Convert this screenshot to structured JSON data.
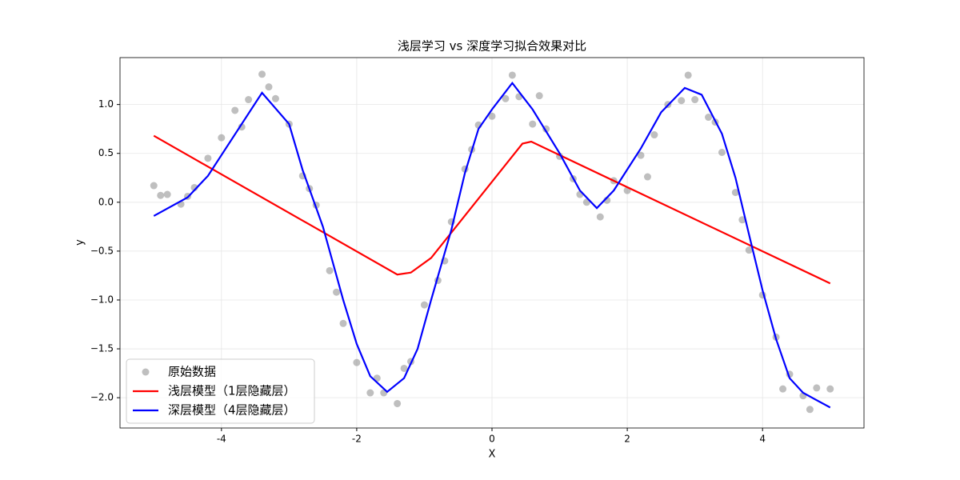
{
  "chart_data": {
    "type": "scatter_line",
    "title": "浅层学习 vs 深度学习拟合效果对比",
    "xlabel": "X",
    "ylabel": "y",
    "xlim": [
      -5.5,
      5.5
    ],
    "ylim": [
      -2.31,
      1.48
    ],
    "xticks": [
      -4,
      -2,
      0,
      2,
      4
    ],
    "yticks": [
      {
        "value": 1,
        "label": "1.0"
      },
      {
        "value": 0.5,
        "label": "0.5"
      },
      {
        "value": 0,
        "label": "0.0"
      },
      {
        "value": -0.5,
        "label": "−0.5"
      },
      {
        "value": -1,
        "label": "−1.0"
      },
      {
        "value": -1.5,
        "label": "−1.5"
      },
      {
        "value": -2,
        "label": "−2.0"
      }
    ],
    "grid": true,
    "legend": "lower left",
    "scatter": {
      "name": "原始数据",
      "color": "#808080",
      "x": [
        -5.0,
        -4.8,
        -4.6,
        -4.4,
        -4.2,
        -4.0,
        -3.8,
        -3.6,
        -3.4,
        -3.2,
        -3.0,
        -2.8,
        -2.6,
        -2.4,
        -2.2,
        -2.0,
        -1.8,
        -1.6,
        -1.4,
        -1.2,
        -1.0,
        -0.8,
        -0.6,
        -0.4,
        -0.2,
        0.0,
        0.2,
        0.4,
        0.6,
        0.8,
        1.0,
        1.2,
        1.4,
        1.6,
        1.8,
        2.0,
        2.2,
        2.4,
        2.6,
        2.8,
        3.0,
        3.2,
        3.4,
        3.6,
        3.8,
        4.0,
        4.2,
        4.4,
        4.6,
        4.8,
        5.0,
        -4.9,
        -4.5,
        -3.7,
        -3.3,
        -2.7,
        -2.3,
        -1.7,
        -1.3,
        -0.7,
        -0.3,
        0.3,
        0.7,
        1.3,
        1.7,
        2.3,
        2.9,
        3.3,
        3.7,
        4.3,
        4.7
      ],
      "values": [
        0.17,
        0.08,
        -0.02,
        0.15,
        0.45,
        0.66,
        0.94,
        1.05,
        1.31,
        1.06,
        0.8,
        0.27,
        -0.03,
        -0.7,
        -1.24,
        -1.64,
        -1.95,
        -1.95,
        -2.06,
        -1.63,
        -1.05,
        -0.8,
        -0.2,
        0.34,
        0.79,
        0.88,
        1.06,
        1.08,
        0.8,
        0.75,
        0.47,
        0.24,
        0.0,
        -0.15,
        0.22,
        0.12,
        0.48,
        0.69,
        1.0,
        1.04,
        1.05,
        0.87,
        0.51,
        0.1,
        -0.49,
        -0.95,
        -1.38,
        -1.76,
        -1.98,
        -1.9,
        -1.91,
        0.07,
        0.06,
        0.77,
        1.18,
        0.14,
        -0.92,
        -1.8,
        -1.7,
        -0.6,
        0.54,
        1.3,
        1.09,
        0.08,
        0.02,
        0.26,
        1.3,
        0.82,
        -0.18,
        -1.91,
        -2.12
      ]
    },
    "series": [
      {
        "name": "浅层模型（1层隐藏层）",
        "color": "#ff0000",
        "x": [
          -5.0,
          -1.4,
          -1.2,
          -0.9,
          0.45,
          0.58,
          5.0
        ],
        "values": [
          0.68,
          -0.74,
          -0.72,
          -0.57,
          0.6,
          0.62,
          -0.83
        ]
      },
      {
        "name": "深层模型（4层隐藏层）",
        "color": "#0000ff",
        "x": [
          -5.0,
          -4.5,
          -4.2,
          -3.4,
          -3.0,
          -2.8,
          -2.5,
          -2.2,
          -2.0,
          -1.8,
          -1.55,
          -1.3,
          -1.1,
          -0.9,
          -0.6,
          -0.4,
          -0.2,
          0.0,
          0.3,
          0.6,
          1.0,
          1.3,
          1.55,
          1.8,
          2.2,
          2.5,
          2.85,
          3.1,
          3.4,
          3.6,
          3.8,
          4.0,
          4.2,
          4.4,
          4.6,
          5.0
        ],
        "values": [
          -0.14,
          0.05,
          0.27,
          1.12,
          0.8,
          0.33,
          -0.25,
          -1.0,
          -1.45,
          -1.78,
          -1.94,
          -1.8,
          -1.5,
          -1.0,
          -0.28,
          0.3,
          0.75,
          0.95,
          1.22,
          0.95,
          0.5,
          0.12,
          -0.06,
          0.12,
          0.55,
          0.92,
          1.17,
          1.1,
          0.7,
          0.25,
          -0.33,
          -0.9,
          -1.4,
          -1.8,
          -1.95,
          -2.1
        ]
      }
    ]
  }
}
